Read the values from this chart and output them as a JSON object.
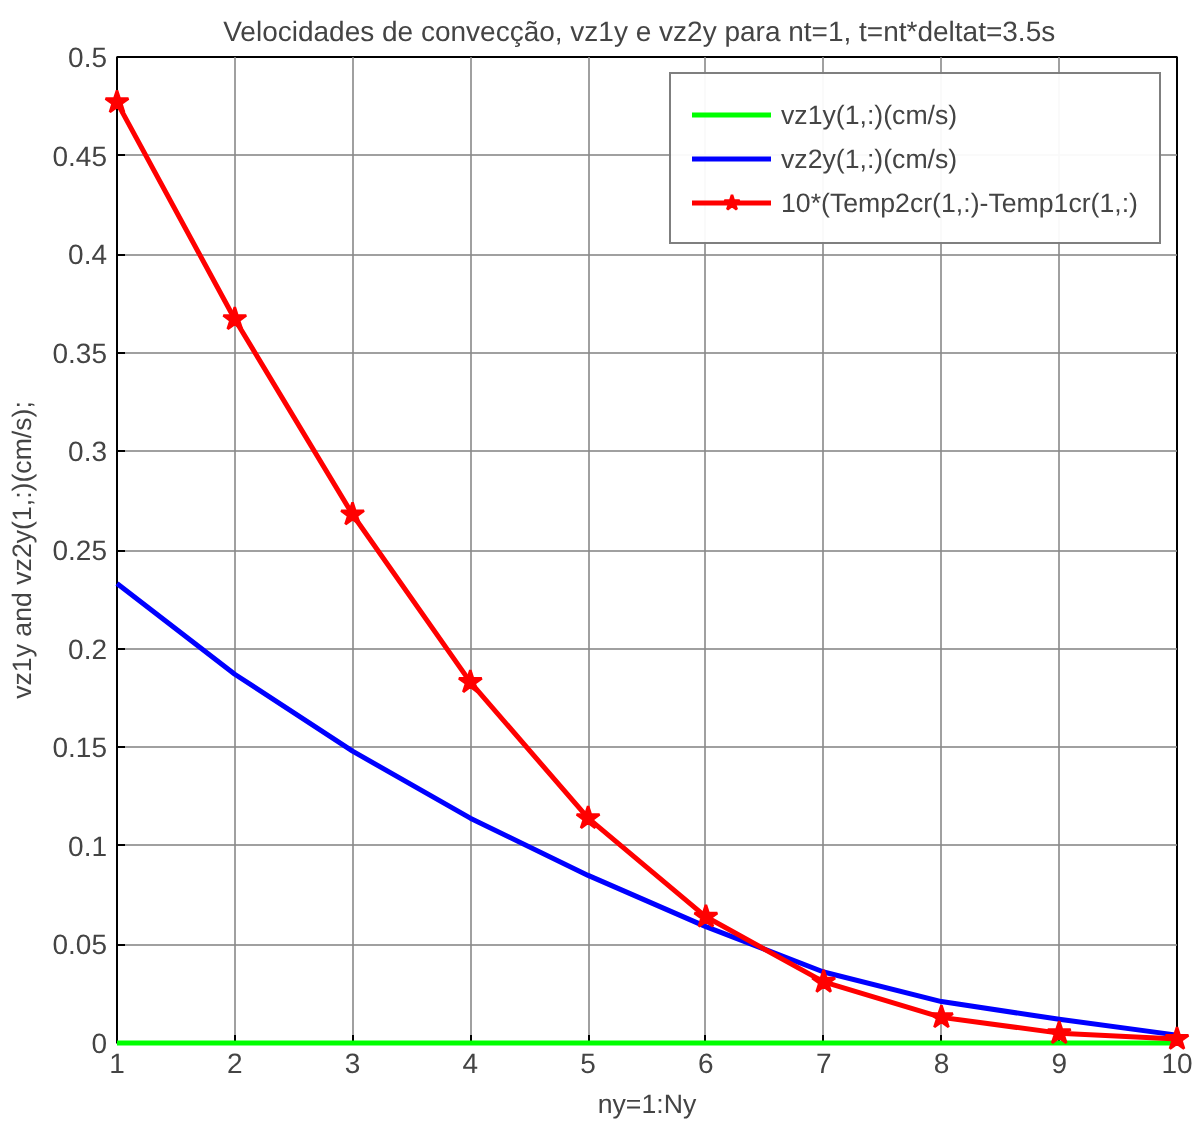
{
  "chart_data": {
    "type": "line",
    "title": "Velocidades de convecção, vz1y e vz2y para  nt=1,  t=nt*deltat=3.5s",
    "xlabel": "ny=1:Ny",
    "ylabel": "vz1y and vz2y(1,:)(cm/s);",
    "x": [
      1,
      2,
      3,
      4,
      5,
      6,
      7,
      8,
      9,
      10
    ],
    "series": [
      {
        "name": "vz1y(1,:)(cm/s)",
        "color": "#00ff00",
        "values": [
          0,
          0,
          0,
          0,
          0,
          0,
          0,
          0,
          0,
          0
        ]
      },
      {
        "name": "vz2y(1,:)(cm/s)",
        "color": "#0000ff",
        "values": [
          0.233,
          0.187,
          0.148,
          0.114,
          0.085,
          0.059,
          0.036,
          0.021,
          0.012,
          0.004
        ]
      },
      {
        "name": "10*(Temp2cr(1,:)-Temp1cr(1,:)",
        "color": "#ff0000",
        "marker": "star",
        "values": [
          0.477,
          0.367,
          0.268,
          0.183,
          0.114,
          0.064,
          0.031,
          0.013,
          0.005,
          0.002
        ]
      }
    ],
    "xlim": [
      1,
      10
    ],
    "ylim": [
      0,
      0.5
    ],
    "xticks": [
      1,
      2,
      3,
      4,
      5,
      6,
      7,
      8,
      9,
      10
    ],
    "yticks": [
      0,
      0.05,
      0.1,
      0.15,
      0.2,
      0.25,
      0.3,
      0.35,
      0.4,
      0.45,
      0.5
    ],
    "grid": true,
    "legend": "top right",
    "line_style": "solid"
  }
}
